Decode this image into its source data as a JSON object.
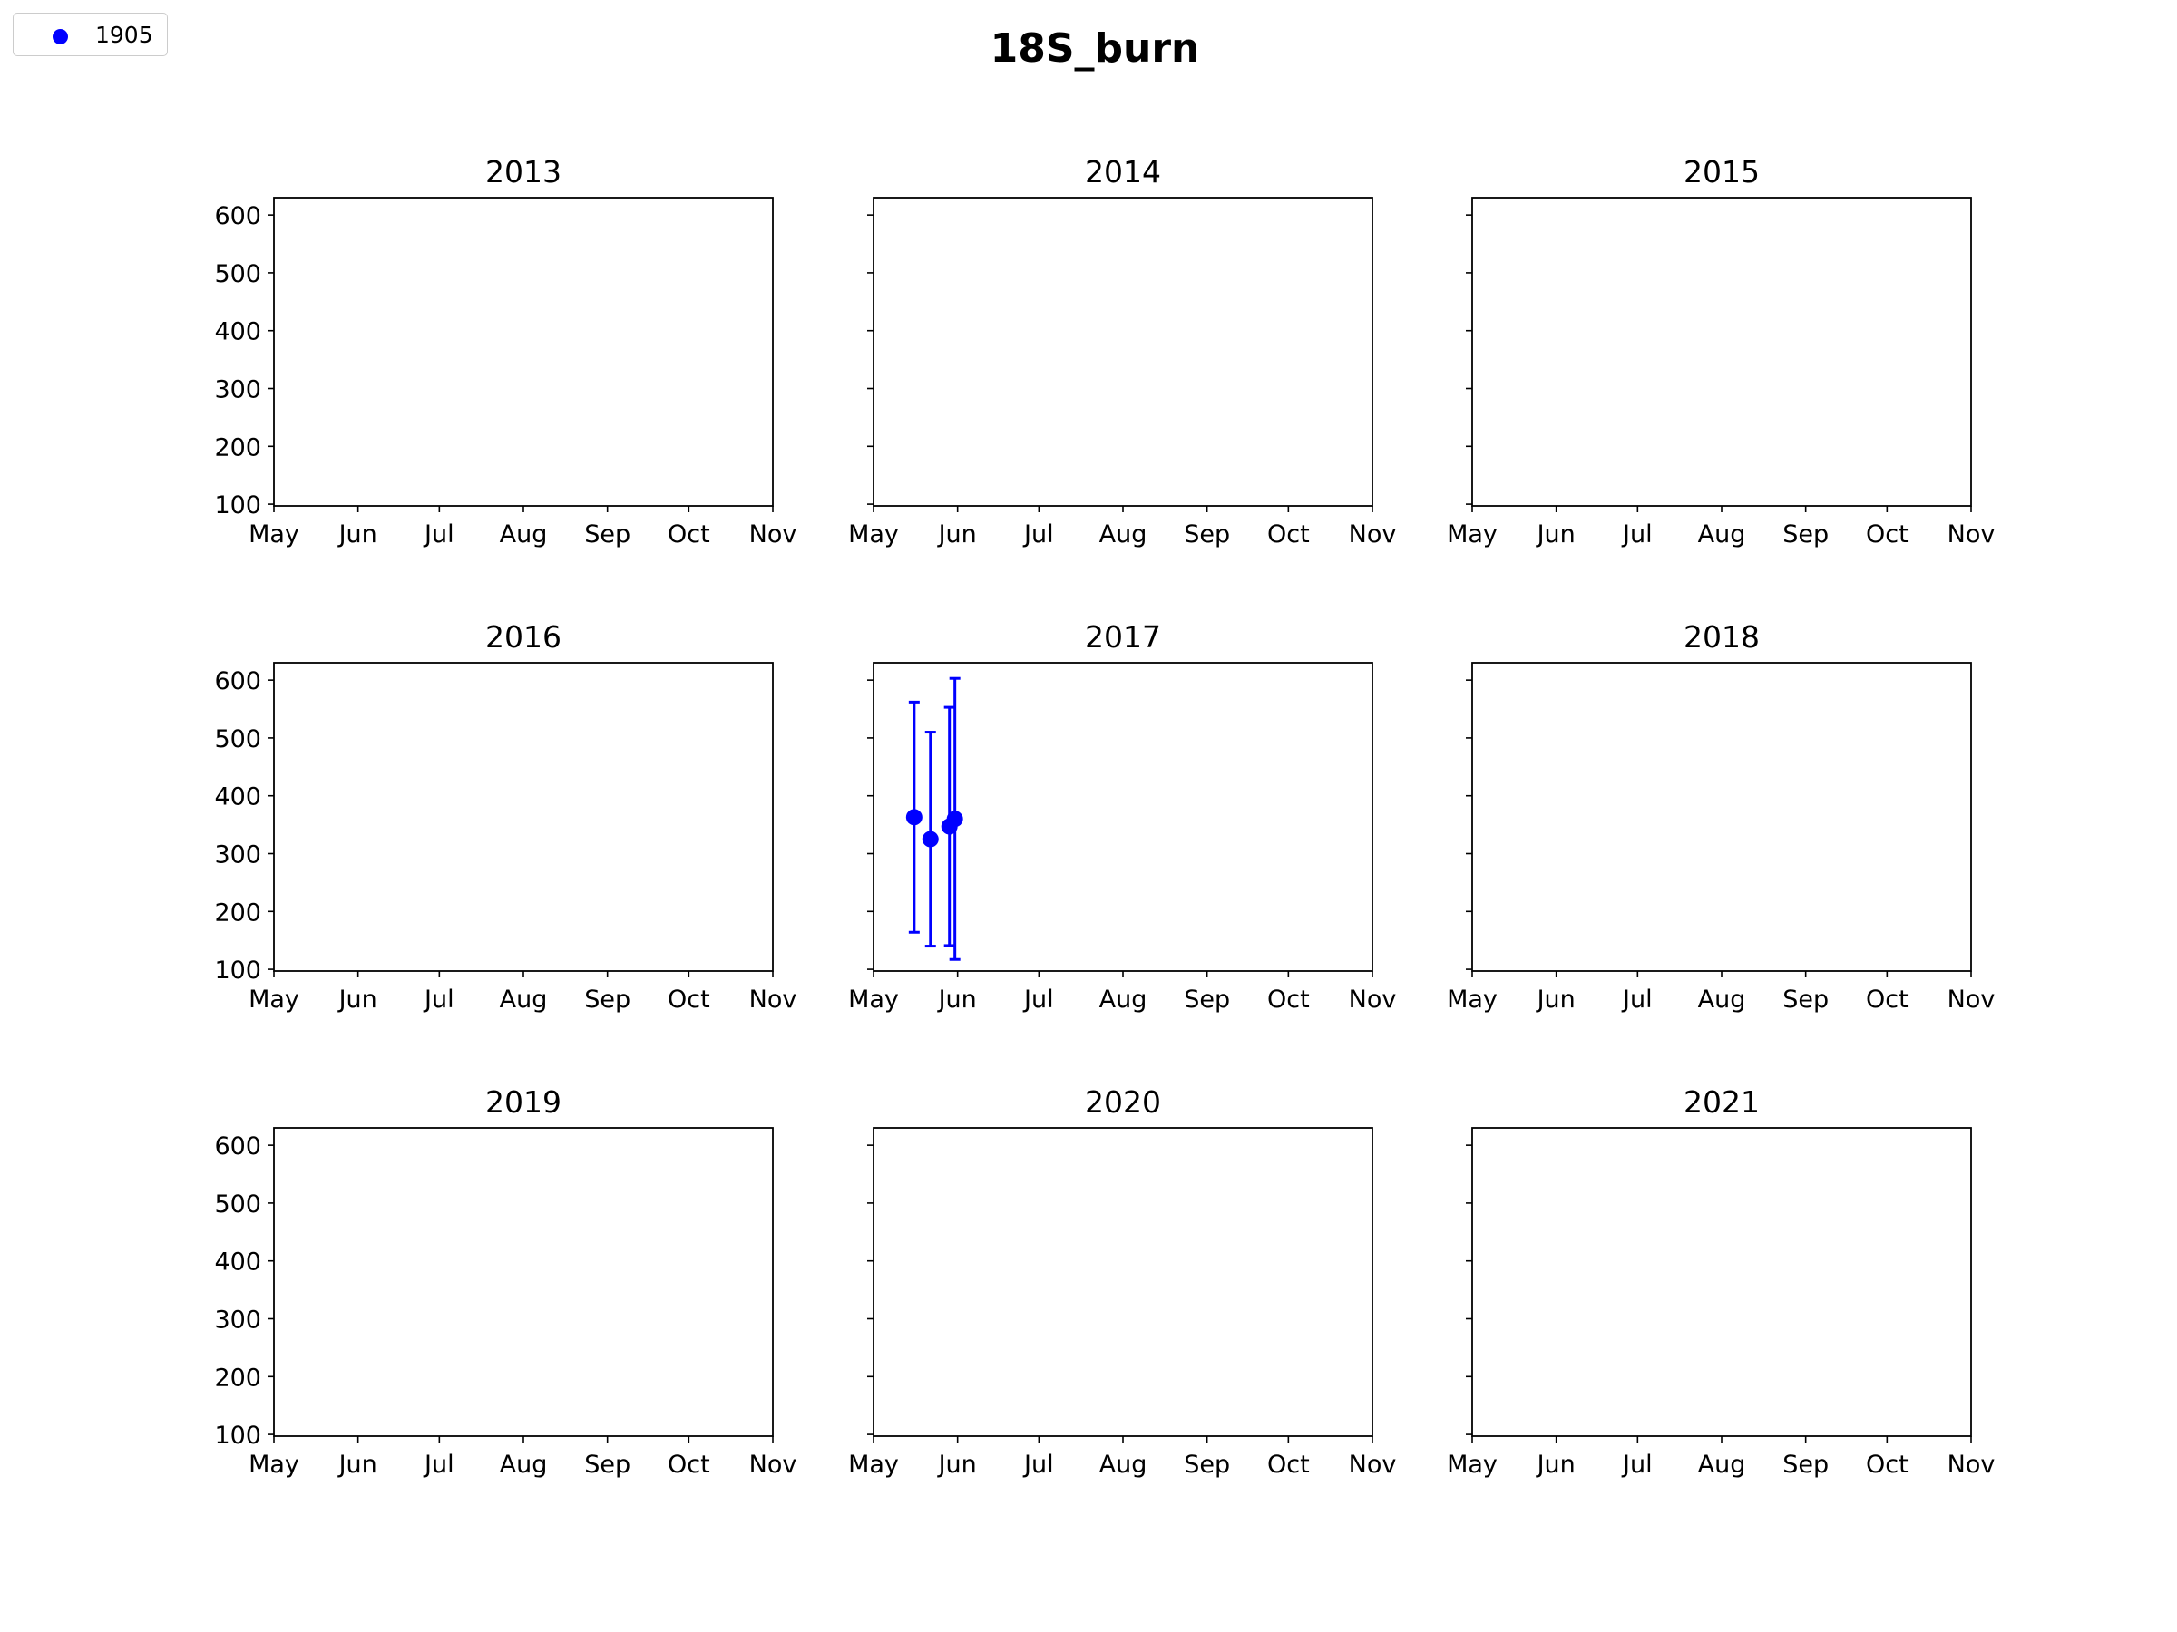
{
  "chart_data": {
    "type": "scatter",
    "title": "18S_burn",
    "legend": {
      "position": "top-left",
      "entries": [
        {
          "name": "1905",
          "color": "#0000ff",
          "marker": "circle"
        }
      ]
    },
    "x_axis": {
      "type": "date",
      "range": [
        "05-01",
        "11-01"
      ],
      "ticks": [
        "May",
        "Jun",
        "Jul",
        "Aug",
        "Sep",
        "Oct",
        "Nov"
      ]
    },
    "y_axis": {
      "range": [
        97,
        630
      ],
      "ticks": [
        100,
        200,
        300,
        400,
        500,
        600
      ],
      "shared": true
    },
    "grid": false,
    "layout": {
      "rows": 3,
      "cols": 3
    },
    "panels": [
      {
        "title": "2013",
        "points": []
      },
      {
        "title": "2014",
        "points": []
      },
      {
        "title": "2015",
        "points": []
      },
      {
        "title": "2016",
        "points": []
      },
      {
        "title": "2017",
        "series": "1905",
        "points": [
          {
            "x": "2017-05-16",
            "y": 363,
            "ylow": 164,
            "yhigh": 562
          },
          {
            "x": "2017-05-22",
            "y": 325,
            "ylow": 140,
            "yhigh": 510
          },
          {
            "x": "2017-05-29",
            "y": 347,
            "ylow": 141,
            "yhigh": 553
          },
          {
            "x": "2017-05-31",
            "y": 360,
            "ylow": 117,
            "yhigh": 603
          }
        ]
      },
      {
        "title": "2018",
        "points": []
      },
      {
        "title": "2019",
        "points": []
      },
      {
        "title": "2020",
        "points": []
      },
      {
        "title": "2021",
        "points": []
      }
    ]
  }
}
